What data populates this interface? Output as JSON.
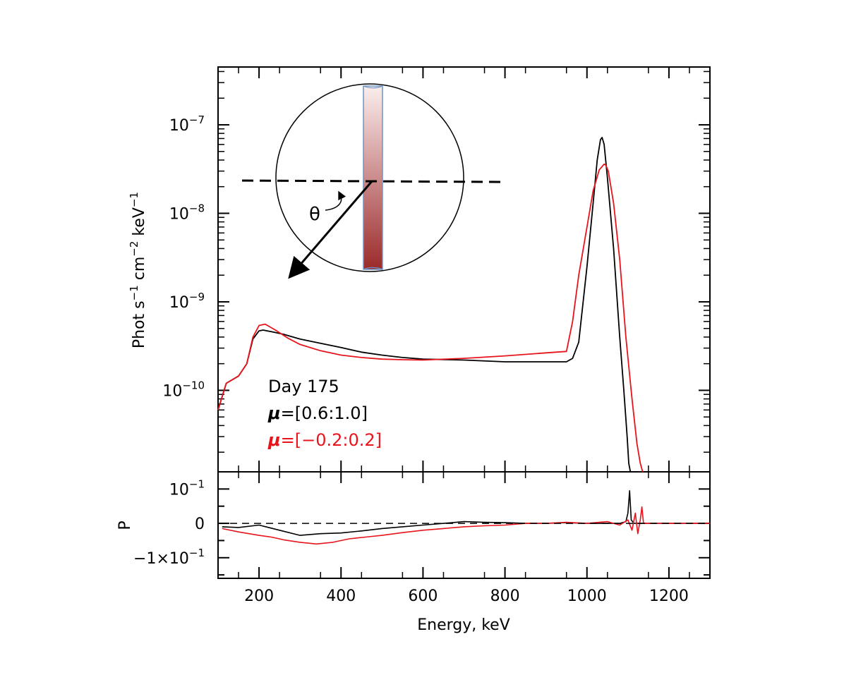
{
  "chart_data": {
    "type": "line",
    "x_axis": {
      "label": "Energy, keV",
      "range": [
        100,
        1300
      ],
      "ticks": [
        200,
        400,
        600,
        800,
        1000,
        1200
      ],
      "tick_labels": [
        "200",
        "400",
        "600",
        "800",
        "1000",
        "1200"
      ]
    },
    "panels": [
      {
        "id": "flux",
        "ylabel_parts": [
          "Phot s",
          "−1",
          " cm",
          "−2",
          " keV",
          "−1"
        ],
        "yscale": "log",
        "ylim": [
          1.2e-11,
          4.5e-07
        ],
        "y_major_ticks": [
          {
            "value": 1e-10,
            "base": "10",
            "exp": "−10"
          },
          {
            "value": 1e-09,
            "base": "10",
            "exp": "−9"
          },
          {
            "value": 1e-08,
            "base": "10",
            "exp": "−8"
          },
          {
            "value": 1e-07,
            "base": "10",
            "exp": "−7"
          }
        ]
      },
      {
        "id": "polarization",
        "ylabel": "P",
        "yscale": "linear",
        "ylim": [
          -0.16,
          0.15
        ],
        "y_ticks": [
          {
            "value": 0.1,
            "base": "10",
            "exp": "−1",
            "prefix": ""
          },
          {
            "value": 0,
            "text": "0"
          },
          {
            "value": -0.1,
            "base": "10",
            "exp": "−1",
            "prefix": "−1×"
          }
        ],
        "zero_line": "dashed"
      }
    ],
    "legend": {
      "title": "Day 175",
      "entries": [
        {
          "symbol": "μ",
          "range_text": "=[0.6:1.0]",
          "color": "#000000"
        },
        {
          "symbol": "μ",
          "range_text": "=[−0.2:0.2]",
          "color": "#e8141c"
        }
      ],
      "placement": "lower-left of top panel"
    },
    "series": [
      {
        "name": "μ=[0.6:1.0]",
        "color": "#000000",
        "flux_x": [
          100,
          120,
          150,
          170,
          185,
          200,
          210,
          230,
          260,
          300,
          350,
          400,
          450,
          500,
          550,
          600,
          700,
          800,
          900,
          950,
          965,
          980,
          1000,
          1015,
          1025,
          1033,
          1037,
          1042,
          1050,
          1065,
          1080,
          1090,
          1098,
          1102,
          1106
        ],
        "flux_y": [
          6e-11,
          1.2e-10,
          1.45e-10,
          2e-10,
          3.8e-10,
          4.7e-10,
          4.8e-10,
          4.6e-10,
          4.3e-10,
          3.8e-10,
          3.4e-10,
          3.05e-10,
          2.7e-10,
          2.5e-10,
          2.35e-10,
          2.25e-10,
          2.2e-10,
          2.1e-10,
          2.1e-10,
          2.1e-10,
          2.3e-10,
          3.5e-10,
          2.5e-09,
          1.3e-08,
          4e-08,
          6.8e-08,
          7.2e-08,
          6e-08,
          2.5e-08,
          4e-09,
          4e-10,
          1e-10,
          3e-11,
          1.5e-11,
          1.2e-11
        ],
        "pol_x": [
          110,
          150,
          200,
          250,
          300,
          350,
          400,
          450,
          500,
          550,
          600,
          650,
          700,
          750,
          800,
          850,
          900,
          950,
          1000,
          1050,
          1080,
          1095,
          1100,
          1104,
          1108,
          1115,
          1300
        ],
        "pol_y": [
          -0.01,
          -0.012,
          -0.005,
          -0.02,
          -0.035,
          -0.03,
          -0.028,
          -0.022,
          -0.015,
          -0.01,
          -0.005,
          0.0,
          0.005,
          0.003,
          0.002,
          0.0,
          0.0,
          0.002,
          0.0,
          0.0,
          0.0,
          0.005,
          0.03,
          0.095,
          0.01,
          0.0,
          0.0
        ]
      },
      {
        "name": "μ=[−0.2:0.2]",
        "color": "#e8141c",
        "flux_x": [
          100,
          120,
          150,
          170,
          185,
          200,
          215,
          240,
          270,
          300,
          350,
          400,
          450,
          500,
          550,
          600,
          700,
          800,
          900,
          950,
          965,
          980,
          1000,
          1015,
          1030,
          1042,
          1046,
          1052,
          1065,
          1080,
          1095,
          1110,
          1122,
          1130,
          1136
        ],
        "flux_y": [
          6e-11,
          1.2e-10,
          1.45e-10,
          2e-10,
          4e-10,
          5.4e-10,
          5.6e-10,
          4.8e-10,
          3.9e-10,
          3.3e-10,
          2.8e-10,
          2.5e-10,
          2.35e-10,
          2.25e-10,
          2.22e-10,
          2.2e-10,
          2.3e-10,
          2.45e-10,
          2.65e-10,
          2.75e-10,
          6e-10,
          2e-09,
          7e-09,
          1.8e-08,
          3.1e-08,
          3.6e-08,
          3.5e-08,
          3e-08,
          1.3e-08,
          3e-09,
          4e-10,
          8e-11,
          2.5e-11,
          1.5e-11,
          1.2e-11
        ],
        "pol_x": [
          110,
          150,
          200,
          230,
          260,
          300,
          340,
          380,
          420,
          460,
          500,
          550,
          600,
          650,
          700,
          750,
          800,
          850,
          900,
          950,
          1000,
          1050,
          1080,
          1100,
          1110,
          1118,
          1124,
          1130,
          1134,
          1138,
          1145,
          1300
        ],
        "pol_y": [
          -0.015,
          -0.025,
          -0.035,
          -0.04,
          -0.048,
          -0.055,
          -0.06,
          -0.055,
          -0.045,
          -0.04,
          -0.035,
          -0.027,
          -0.02,
          -0.015,
          -0.01,
          -0.007,
          -0.005,
          0.0,
          0.0,
          0.003,
          0.0,
          0.005,
          -0.005,
          0.01,
          -0.02,
          0.03,
          -0.03,
          0.01,
          0.048,
          0.0,
          0.0,
          0.0
        ]
      }
    ],
    "inset": {
      "description_label": "θ",
      "colors": {
        "gradient_top": "#fbeeee",
        "gradient_bottom": "#9b2a2a",
        "outline": "#6d93c7"
      }
    }
  }
}
